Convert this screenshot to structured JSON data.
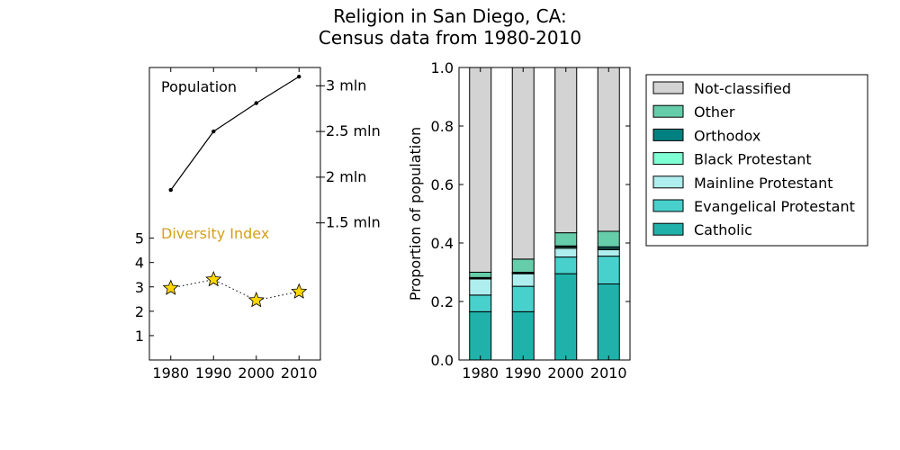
{
  "title_line1": "Religion in San Diego, CA:",
  "title_line2": "Census data from 1980-2010",
  "colors": {
    "population_line": "#000000",
    "diversity_label": "#d4a017",
    "diversity_marker": "#ffd700",
    "grid": "none"
  },
  "chart_data": [
    {
      "type": "line",
      "name": "population-chart",
      "annotation": "Population",
      "x": [
        1980,
        1990,
        2000,
        2010
      ],
      "y": [
        1860000,
        2500000,
        2810000,
        3100000
      ],
      "y_axis_side": "right",
      "yticks": [
        1500000,
        2000000,
        2500000,
        3000000
      ],
      "ytick_labels": [
        "1.5 mln",
        "2 mln",
        "2.5 mln",
        "3 mln"
      ],
      "ylim": [
        0,
        3200000
      ],
      "xlim": [
        1975,
        2015
      ],
      "xticks": [
        "1980",
        "1990",
        "2000",
        "2010"
      ],
      "marker": "dot",
      "line_style": "solid"
    },
    {
      "type": "line",
      "name": "diversity-chart",
      "annotation": "Diversity Index",
      "x": [
        1980,
        1990,
        2000,
        2010
      ],
      "y": [
        2.95,
        3.3,
        2.45,
        2.8
      ],
      "y_axis_side": "left",
      "yticks": [
        1,
        2,
        3,
        4,
        5
      ],
      "ytick_labels": [
        "1",
        "2",
        "3",
        "4",
        "5"
      ],
      "ylim": [
        0,
        12
      ],
      "marker": "star",
      "line_style": "dotted"
    },
    {
      "type": "bar",
      "stacked": true,
      "categories": [
        "1980",
        "1990",
        "2000",
        "2010"
      ],
      "ylabel": "Proportion of population",
      "ylim": [
        0,
        1.0
      ],
      "yticks": [
        "0.0",
        "0.2",
        "0.4",
        "0.6",
        "0.8",
        "1.0"
      ],
      "legend_position": "right",
      "series": [
        {
          "name": "Catholic",
          "color": "#20b2aa",
          "values": [
            0.165,
            0.165,
            0.295,
            0.26
          ]
        },
        {
          "name": "Evangelical Protestant",
          "color": "#48d1cc",
          "values": [
            0.057,
            0.087,
            0.057,
            0.095
          ]
        },
        {
          "name": "Mainline Protestant",
          "color": "#afeeee",
          "values": [
            0.055,
            0.043,
            0.03,
            0.022
          ]
        },
        {
          "name": "Black Protestant",
          "color": "#7fffd4",
          "values": [
            0.003,
            0.003,
            0.004,
            0.004
          ]
        },
        {
          "name": "Orthodox",
          "color": "#008080",
          "values": [
            0.002,
            0.002,
            0.004,
            0.006
          ]
        },
        {
          "name": "Other",
          "color": "#66cdaa",
          "values": [
            0.018,
            0.045,
            0.045,
            0.053
          ]
        },
        {
          "name": "Not-classified",
          "color": "#d3d3d3",
          "values": [
            0.7,
            0.655,
            0.565,
            0.56
          ]
        }
      ],
      "legend_order": [
        "Not-classified",
        "Other",
        "Orthodox",
        "Black Protestant",
        "Mainline Protestant",
        "Evangelical Protestant",
        "Catholic"
      ]
    }
  ]
}
